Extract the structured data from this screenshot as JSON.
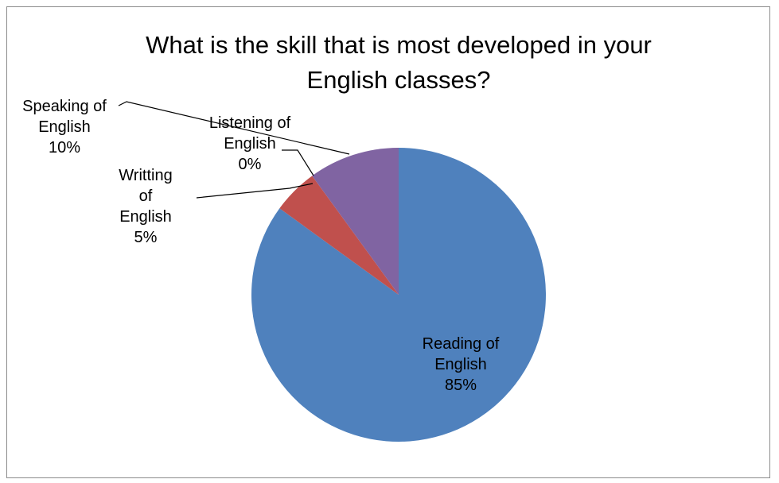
{
  "chart_data": {
    "type": "pie",
    "title": "What is the skill that is most developed in your English classes?",
    "title_lines": [
      "What is the skill that is most developed in your",
      "English classes?"
    ],
    "slices": [
      {
        "label_lines": [
          "Reading of",
          "English"
        ],
        "percent_text": "85%",
        "value": 85,
        "color": "#4f81bd"
      },
      {
        "label_lines": [
          "Writting",
          "of",
          "English"
        ],
        "percent_text": "5%",
        "value": 5,
        "color": "#c0504d"
      },
      {
        "label_lines": [
          "Listening of",
          "English"
        ],
        "percent_text": "0%",
        "value": 0,
        "color": "#9bbb59"
      },
      {
        "label_lines": [
          "Speaking of",
          "English"
        ],
        "percent_text": "10%",
        "value": 10,
        "color": "#8064a2"
      }
    ]
  }
}
